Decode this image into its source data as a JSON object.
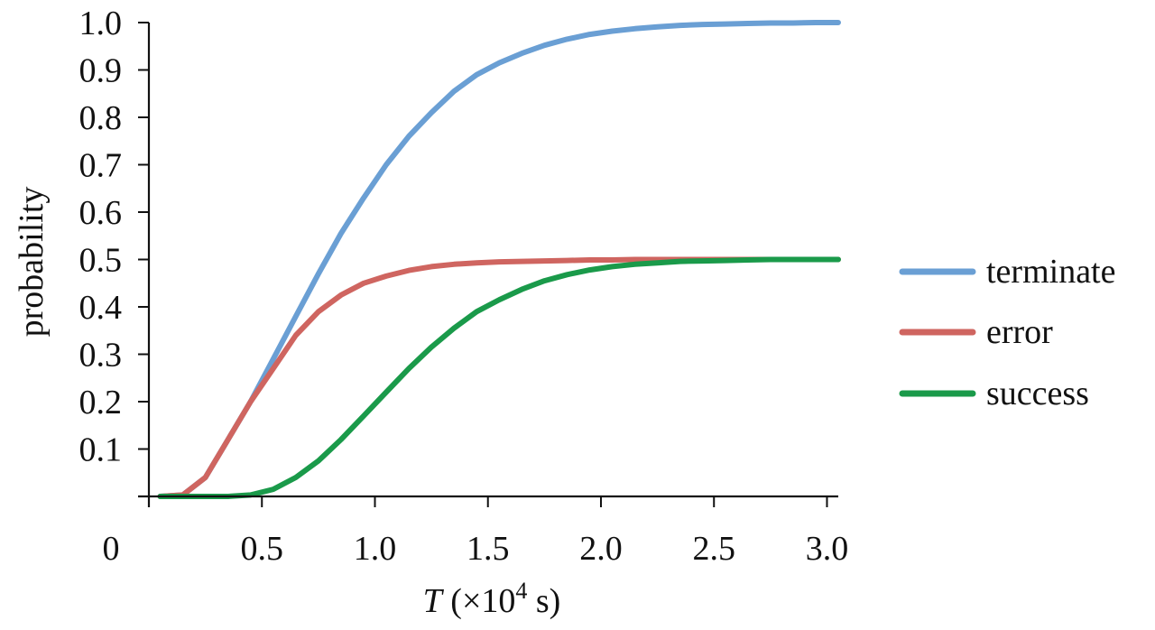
{
  "chart_data": {
    "type": "line",
    "title": "",
    "xlabel": {
      "symbol": "T",
      "open": " (×10",
      "exponent": "4",
      "unit": " s)"
    },
    "ylabel": "probability",
    "xlim": [
      0,
      3.05
    ],
    "ylim": [
      0,
      1.0
    ],
    "x_ticks": [
      {
        "value": 0,
        "label": "0"
      },
      {
        "value": 0.5,
        "label": "0.5"
      },
      {
        "value": 1.0,
        "label": "1.0"
      },
      {
        "value": 1.5,
        "label": "1.5"
      },
      {
        "value": 2.0,
        "label": "2.0"
      },
      {
        "value": 2.5,
        "label": "2.5"
      },
      {
        "value": 3.0,
        "label": "3.0"
      }
    ],
    "y_ticks": [
      {
        "value": 0.1,
        "label": "0.1"
      },
      {
        "value": 0.2,
        "label": "0.2"
      },
      {
        "value": 0.3,
        "label": "0.3"
      },
      {
        "value": 0.4,
        "label": "0.4"
      },
      {
        "value": 0.5,
        "label": "0.5"
      },
      {
        "value": 0.6,
        "label": "0.6"
      },
      {
        "value": 0.7,
        "label": "0.7"
      },
      {
        "value": 0.8,
        "label": "0.8"
      },
      {
        "value": 0.9,
        "label": "0.9"
      },
      {
        "value": 1.0,
        "label": "1.0"
      }
    ],
    "grid": false,
    "legend_position": "right",
    "series": [
      {
        "name": "terminate",
        "color": "#6a9fd4",
        "x": [
          0.05,
          0.15,
          0.25,
          0.35,
          0.45,
          0.55,
          0.65,
          0.75,
          0.85,
          0.95,
          1.05,
          1.15,
          1.25,
          1.35,
          1.45,
          1.55,
          1.65,
          1.75,
          1.85,
          1.95,
          2.05,
          2.15,
          2.25,
          2.35,
          2.45,
          2.55,
          2.65,
          2.75,
          2.85,
          2.95,
          3.05
        ],
        "values": [
          0.0,
          0.003,
          0.04,
          0.12,
          0.2,
          0.29,
          0.38,
          0.47,
          0.555,
          0.63,
          0.7,
          0.76,
          0.81,
          0.855,
          0.89,
          0.915,
          0.935,
          0.952,
          0.965,
          0.975,
          0.982,
          0.987,
          0.991,
          0.994,
          0.996,
          0.997,
          0.998,
          0.999,
          0.999,
          1.0,
          1.0
        ]
      },
      {
        "name": "error",
        "color": "#cf6560",
        "x": [
          0.05,
          0.15,
          0.25,
          0.35,
          0.45,
          0.55,
          0.65,
          0.75,
          0.85,
          0.95,
          1.05,
          1.15,
          1.25,
          1.35,
          1.45,
          1.55,
          1.65,
          1.75,
          1.85,
          1.95,
          2.05,
          2.15,
          2.25,
          2.35,
          2.45,
          2.55,
          2.65,
          2.75,
          2.85,
          2.95,
          3.05
        ],
        "values": [
          0.0,
          0.003,
          0.04,
          0.12,
          0.2,
          0.27,
          0.34,
          0.39,
          0.425,
          0.45,
          0.465,
          0.477,
          0.485,
          0.49,
          0.493,
          0.495,
          0.496,
          0.497,
          0.498,
          0.499,
          0.499,
          0.5,
          0.5,
          0.5,
          0.5,
          0.5,
          0.5,
          0.5,
          0.5,
          0.5,
          0.5
        ]
      },
      {
        "name": "success",
        "color": "#1a9a4a",
        "x": [
          0.05,
          0.15,
          0.25,
          0.35,
          0.45,
          0.55,
          0.65,
          0.75,
          0.85,
          0.95,
          1.05,
          1.15,
          1.25,
          1.35,
          1.45,
          1.55,
          1.65,
          1.75,
          1.85,
          1.95,
          2.05,
          2.15,
          2.25,
          2.35,
          2.45,
          2.55,
          2.65,
          2.75,
          2.85,
          2.95,
          3.05
        ],
        "values": [
          0.0,
          0.0,
          0.0,
          0.0,
          0.003,
          0.015,
          0.04,
          0.075,
          0.12,
          0.17,
          0.22,
          0.27,
          0.315,
          0.355,
          0.39,
          0.415,
          0.437,
          0.455,
          0.468,
          0.478,
          0.485,
          0.49,
          0.493,
          0.496,
          0.497,
          0.498,
          0.499,
          0.5,
          0.5,
          0.5,
          0.5
        ]
      }
    ]
  }
}
